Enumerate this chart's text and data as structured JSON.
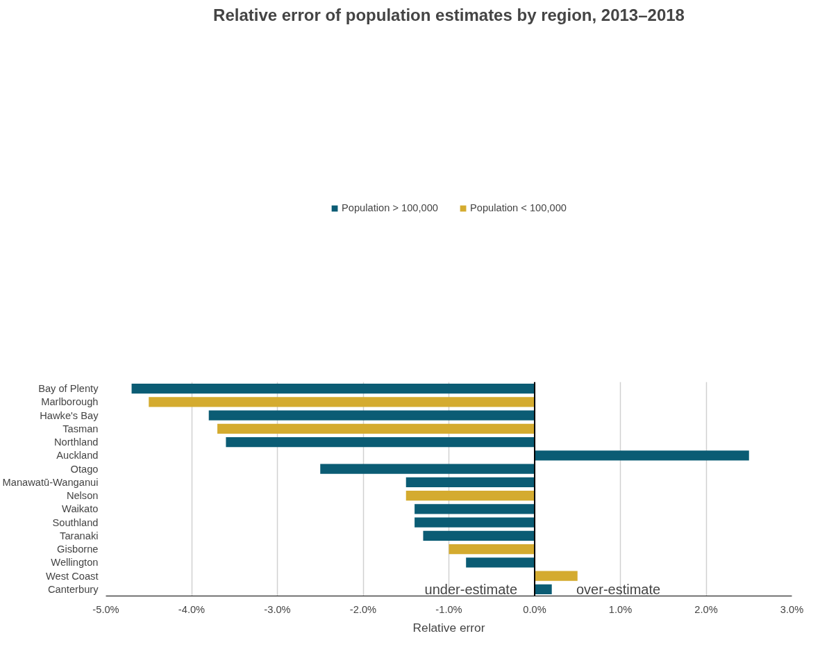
{
  "chart_data": {
    "type": "bar",
    "orientation": "horizontal",
    "title": "Relative error of population estimates by region, 2013–2018",
    "xlabel": "Relative error",
    "categories": [
      "Bay of Plenty",
      "Marlborough",
      "Hawke's Bay",
      "Tasman",
      "Northland",
      "Auckland",
      "Otago",
      "Manawatū-Wanganui",
      "Nelson",
      "Waikato",
      "Southland",
      "Taranaki",
      "Gisborne",
      "Wellington",
      "West Coast",
      "Canterbury"
    ],
    "series": [
      {
        "name": "Population > 100,000",
        "color": "#0b5c74",
        "values": [
          -4.7,
          null,
          -3.8,
          null,
          -3.6,
          2.5,
          -2.5,
          -1.5,
          null,
          -1.4,
          -1.4,
          -1.3,
          null,
          -0.8,
          null,
          0.2
        ]
      },
      {
        "name": "Population < 100,000",
        "color": "#d4ab2f",
        "values": [
          null,
          -4.5,
          null,
          -3.7,
          null,
          null,
          null,
          null,
          -1.5,
          null,
          null,
          null,
          -1.0,
          null,
          0.5,
          null
        ]
      }
    ],
    "xlim": [
      -5,
      3
    ],
    "xticks": [
      {
        "value": -5,
        "label": "-5.0%"
      },
      {
        "value": -4,
        "label": "-4.0%"
      },
      {
        "value": -3,
        "label": "-3.0%"
      },
      {
        "value": -2,
        "label": "-2.0%"
      },
      {
        "value": -1,
        "label": "-1.0%"
      },
      {
        "value": 0,
        "label": "0.0%"
      },
      {
        "value": 1,
        "label": "1.0%"
      },
      {
        "value": 2,
        "label": "2.0%"
      },
      {
        "value": 3,
        "label": "3.0%"
      }
    ],
    "ref_lines": [
      {
        "axis": "x",
        "value": 0,
        "color": "#000000"
      }
    ],
    "annotations": [
      "under-estimate",
      "over-estimate"
    ],
    "grid": "x",
    "legend": "top"
  }
}
